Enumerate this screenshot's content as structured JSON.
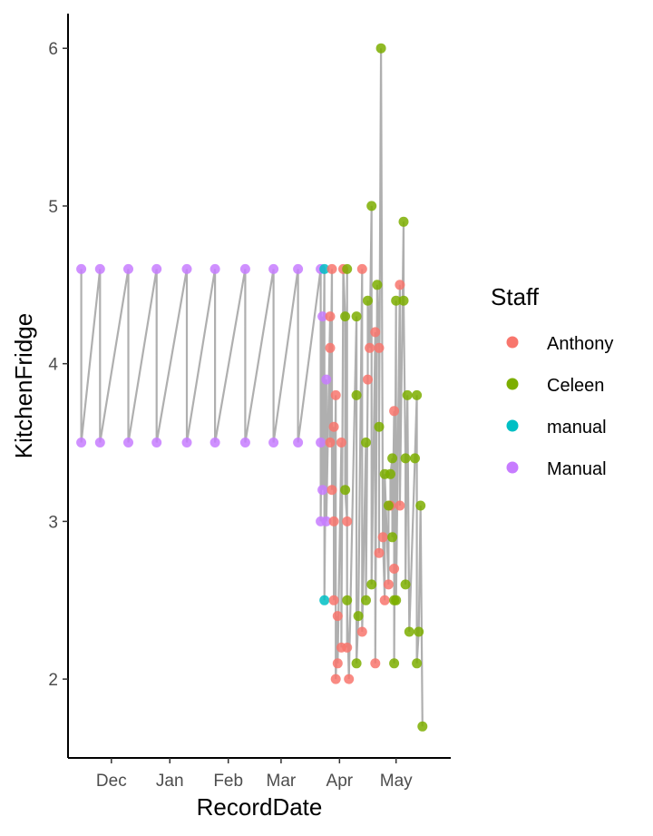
{
  "chart_data": {
    "type": "scatter",
    "xlabel": "RecordDate",
    "ylabel": "KitchenFridge",
    "x_ticks": [
      {
        "label": "Dec",
        "date": "2022-12-01"
      },
      {
        "label": "Jan",
        "date": "2023-01-01"
      },
      {
        "label": "Feb",
        "date": "2023-02-01"
      },
      {
        "label": "Mar",
        "date": "2023-03-01"
      },
      {
        "label": "Apr",
        "date": "2023-04-01"
      },
      {
        "label": "May",
        "date": "2023-05-01"
      }
    ],
    "y_ticks": [
      2,
      3,
      4,
      5,
      6
    ],
    "xlim": [
      "2022-11-08",
      "2023-05-30"
    ],
    "ylim": [
      1.5,
      6.22
    ],
    "grid": false,
    "legend": {
      "title": "Staff",
      "placement": "right",
      "entries": [
        {
          "label": "Anthony",
          "color": "#F8766D"
        },
        {
          "label": "Celeen",
          "color": "#7CAE00"
        },
        {
          "label": "manual",
          "color": "#00BFC4"
        },
        {
          "label": "Manual",
          "color": "#C77CFF"
        }
      ]
    },
    "connecting_line_color": "#a6a6a6",
    "series": [
      {
        "name": "Manual",
        "color": "#C77CFF",
        "points": [
          {
            "date": "2022-11-15",
            "y": 4.6
          },
          {
            "date": "2022-11-25",
            "y": 4.6
          },
          {
            "date": "2022-12-10",
            "y": 4.6
          },
          {
            "date": "2022-12-25",
            "y": 4.6
          },
          {
            "date": "2023-01-10",
            "y": 4.6
          },
          {
            "date": "2023-01-25",
            "y": 4.6
          },
          {
            "date": "2023-02-10",
            "y": 4.6
          },
          {
            "date": "2023-02-25",
            "y": 4.6
          },
          {
            "date": "2023-03-10",
            "y": 4.6
          },
          {
            "date": "2023-03-22",
            "y": 4.6
          },
          {
            "date": "2022-11-15",
            "y": 3.5
          },
          {
            "date": "2022-11-25",
            "y": 3.5
          },
          {
            "date": "2022-12-10",
            "y": 3.5
          },
          {
            "date": "2022-12-25",
            "y": 3.5
          },
          {
            "date": "2023-01-10",
            "y": 3.5
          },
          {
            "date": "2023-01-25",
            "y": 3.5
          },
          {
            "date": "2023-02-10",
            "y": 3.5
          },
          {
            "date": "2023-02-25",
            "y": 3.5
          },
          {
            "date": "2023-03-10",
            "y": 3.5
          },
          {
            "date": "2023-03-22",
            "y": 3.5
          },
          {
            "date": "2023-03-23",
            "y": 4.3
          },
          {
            "date": "2023-03-25",
            "y": 3.9
          },
          {
            "date": "2023-03-23",
            "y": 3.2
          },
          {
            "date": "2023-03-22",
            "y": 3.0
          },
          {
            "date": "2023-03-25",
            "y": 3.0
          }
        ]
      },
      {
        "name": "manual",
        "color": "#00BFC4",
        "points": [
          {
            "date": "2023-03-24",
            "y": 4.6
          },
          {
            "date": "2023-03-24",
            "y": 2.5
          }
        ]
      },
      {
        "name": "Anthony",
        "color": "#F8766D",
        "points": [
          {
            "date": "2023-03-28",
            "y": 4.6
          },
          {
            "date": "2023-03-27",
            "y": 4.3
          },
          {
            "date": "2023-03-27",
            "y": 4.1
          },
          {
            "date": "2023-03-27",
            "y": 3.5
          },
          {
            "date": "2023-03-28",
            "y": 3.2
          },
          {
            "date": "2023-03-29",
            "y": 3.6
          },
          {
            "date": "2023-03-29",
            "y": 3.0
          },
          {
            "date": "2023-03-29",
            "y": 2.5
          },
          {
            "date": "2023-03-30",
            "y": 3.8
          },
          {
            "date": "2023-03-31",
            "y": 2.4
          },
          {
            "date": "2023-03-30",
            "y": 2.0
          },
          {
            "date": "2023-03-31",
            "y": 2.1
          },
          {
            "date": "2023-04-02",
            "y": 3.5
          },
          {
            "date": "2023-04-02",
            "y": 2.2
          },
          {
            "date": "2023-04-03",
            "y": 4.6
          },
          {
            "date": "2023-04-05",
            "y": 3.0
          },
          {
            "date": "2023-04-05",
            "y": 2.2
          },
          {
            "date": "2023-04-06",
            "y": 2.0
          },
          {
            "date": "2023-04-13",
            "y": 4.6
          },
          {
            "date": "2023-04-13",
            "y": 2.3
          },
          {
            "date": "2023-04-16",
            "y": 3.9
          },
          {
            "date": "2023-04-17",
            "y": 4.1
          },
          {
            "date": "2023-04-20",
            "y": 4.2
          },
          {
            "date": "2023-04-20",
            "y": 2.1
          },
          {
            "date": "2023-04-22",
            "y": 4.1
          },
          {
            "date": "2023-04-22",
            "y": 2.8
          },
          {
            "date": "2023-04-24",
            "y": 2.9
          },
          {
            "date": "2023-04-25",
            "y": 2.5
          },
          {
            "date": "2023-04-27",
            "y": 2.6
          },
          {
            "date": "2023-04-28",
            "y": 3.1
          },
          {
            "date": "2023-04-30",
            "y": 3.7
          },
          {
            "date": "2023-04-30",
            "y": 2.7
          },
          {
            "date": "2023-05-03",
            "y": 4.5
          },
          {
            "date": "2023-05-03",
            "y": 3.1
          }
        ]
      },
      {
        "name": "Celeen",
        "color": "#7CAE00",
        "points": [
          {
            "date": "2023-04-05",
            "y": 4.6
          },
          {
            "date": "2023-04-04",
            "y": 4.3
          },
          {
            "date": "2023-04-04",
            "y": 3.2
          },
          {
            "date": "2023-04-05",
            "y": 2.5
          },
          {
            "date": "2023-04-10",
            "y": 4.3
          },
          {
            "date": "2023-04-10",
            "y": 3.8
          },
          {
            "date": "2023-04-11",
            "y": 2.4
          },
          {
            "date": "2023-04-10",
            "y": 2.1
          },
          {
            "date": "2023-04-16",
            "y": 4.4
          },
          {
            "date": "2023-04-15",
            "y": 3.5
          },
          {
            "date": "2023-04-15",
            "y": 2.5
          },
          {
            "date": "2023-04-18",
            "y": 5.0
          },
          {
            "date": "2023-04-18",
            "y": 2.6
          },
          {
            "date": "2023-04-21",
            "y": 4.5
          },
          {
            "date": "2023-04-22",
            "y": 3.6
          },
          {
            "date": "2023-04-23",
            "y": 6.0
          },
          {
            "date": "2023-04-25",
            "y": 3.3
          },
          {
            "date": "2023-04-27",
            "y": 3.1
          },
          {
            "date": "2023-04-28",
            "y": 3.3
          },
          {
            "date": "2023-04-29",
            "y": 3.4
          },
          {
            "date": "2023-04-29",
            "y": 2.9
          },
          {
            "date": "2023-04-30",
            "y": 2.5
          },
          {
            "date": "2023-04-30",
            "y": 2.1
          },
          {
            "date": "2023-05-01",
            "y": 4.4
          },
          {
            "date": "2023-05-01",
            "y": 2.5
          },
          {
            "date": "2023-05-05",
            "y": 4.9
          },
          {
            "date": "2023-05-05",
            "y": 4.4
          },
          {
            "date": "2023-05-06",
            "y": 3.4
          },
          {
            "date": "2023-05-06",
            "y": 2.6
          },
          {
            "date": "2023-05-07",
            "y": 3.8
          },
          {
            "date": "2023-05-08",
            "y": 2.3
          },
          {
            "date": "2023-05-11",
            "y": 3.4
          },
          {
            "date": "2023-05-12",
            "y": 3.8
          },
          {
            "date": "2023-05-12",
            "y": 2.1
          },
          {
            "date": "2023-05-13",
            "y": 2.3
          },
          {
            "date": "2023-05-14",
            "y": 3.1
          },
          {
            "date": "2023-05-15",
            "y": 1.7
          }
        ]
      }
    ]
  }
}
